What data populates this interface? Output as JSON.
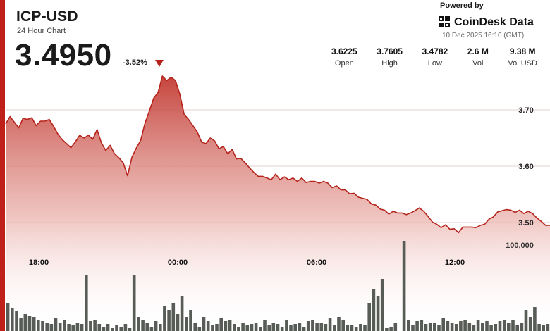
{
  "header": {
    "symbol": "ICP-USD",
    "subtitle": "24 Hour Chart",
    "price": "3.4950",
    "change": "-3.52%"
  },
  "brand": {
    "powered_by": "Powered by",
    "name": "CoinDesk Data",
    "timestamp": "10 Dec 2025 16:10 (GMT)"
  },
  "stats": [
    {
      "value": "3.6225",
      "label": "Open"
    },
    {
      "value": "3.7605",
      "label": "High"
    },
    {
      "value": "3.4782",
      "label": "Low"
    },
    {
      "value": "2.6 M",
      "label": "Vol"
    },
    {
      "value": "9.38 M",
      "label": "Vol USD"
    }
  ],
  "colors": {
    "accent_red": "#c0201a",
    "line": "#b5231b",
    "volume_bar": "#585c56"
  },
  "chart_data": {
    "type": "area",
    "x_ticks": [
      "18:00",
      "00:00",
      "06:00",
      "12:00"
    ],
    "y_ticks": [
      "3.70",
      "3.60",
      "3.50"
    ],
    "volume_tick": "100,000",
    "ylim": [
      3.38,
      3.92
    ],
    "price": [
      3.675,
      3.688,
      3.678,
      3.668,
      3.685,
      3.683,
      3.686,
      3.672,
      3.68,
      3.68,
      3.683,
      3.671,
      3.657,
      3.647,
      3.64,
      3.633,
      3.643,
      3.655,
      3.65,
      3.655,
      3.648,
      3.665,
      3.641,
      3.628,
      3.637,
      3.622,
      3.615,
      3.606,
      3.583,
      3.616,
      3.632,
      3.646,
      3.676,
      3.698,
      3.721,
      3.731,
      3.76,
      3.752,
      3.758,
      3.752,
      3.728,
      3.692,
      3.683,
      3.672,
      3.661,
      3.643,
      3.64,
      3.65,
      3.645,
      3.631,
      3.635,
      3.622,
      3.63,
      3.613,
      3.614,
      3.606,
      3.597,
      3.589,
      3.582,
      3.582,
      3.579,
      3.576,
      3.586,
      3.576,
      3.581,
      3.576,
      3.579,
      3.573,
      3.579,
      3.571,
      3.573,
      3.573,
      3.57,
      3.573,
      3.57,
      3.562,
      3.565,
      3.558,
      3.558,
      3.551,
      3.552,
      3.545,
      3.543,
      3.541,
      3.533,
      3.531,
      3.524,
      3.522,
      3.515,
      3.52,
      3.517,
      3.517,
      3.514,
      3.517,
      3.521,
      3.526,
      3.52,
      3.511,
      3.501,
      3.497,
      3.491,
      3.496,
      3.488,
      3.489,
      3.482,
      3.492,
      3.492,
      3.492,
      3.491,
      3.495,
      3.497,
      3.506,
      3.51,
      3.519,
      3.521,
      3.523,
      3.522,
      3.518,
      3.522,
      3.516,
      3.52,
      3.516,
      3.508,
      3.502,
      3.495,
      3.495
    ],
    "volume": [
      40,
      32,
      28,
      18,
      24,
      22,
      20,
      15,
      14,
      12,
      10,
      18,
      12,
      16,
      10,
      8,
      12,
      10,
      80,
      14,
      16,
      10,
      6,
      10,
      4,
      8,
      6,
      10,
      4,
      80,
      20,
      16,
      12,
      6,
      14,
      10,
      36,
      30,
      40,
      24,
      50,
      20,
      30,
      12,
      6,
      20,
      14,
      8,
      10,
      18,
      14,
      16,
      10,
      6,
      12,
      8,
      10,
      12,
      6,
      16,
      8,
      12,
      10,
      6,
      16,
      8,
      10,
      12,
      6,
      14,
      16,
      12,
      12,
      10,
      18,
      8,
      20,
      16,
      8,
      8,
      6,
      10,
      8,
      40,
      60,
      50,
      74,
      4,
      6,
      12,
      0,
      128,
      16,
      8,
      14,
      16,
      10,
      12,
      12,
      8,
      18,
      14,
      12,
      10,
      14,
      16,
      12,
      8,
      16,
      12,
      14,
      8,
      10,
      14,
      16,
      12,
      16,
      8,
      12,
      30,
      20,
      34,
      10,
      8,
      10
    ]
  }
}
